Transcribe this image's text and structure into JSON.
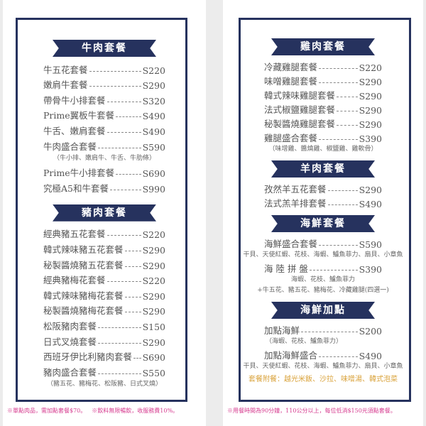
{
  "left": {
    "sections": [
      {
        "title": "牛肉套餐",
        "items": [
          {
            "name": "牛五花套餐",
            "price": "S220"
          },
          {
            "name": "嫩肩牛套餐",
            "price": "S290"
          },
          {
            "name": "帶骨牛小排套餐",
            "price": "S320"
          },
          {
            "name": "Prime翼板牛套餐",
            "price": "S490"
          },
          {
            "name": "牛舌、嫩肩套餐",
            "price": "S490"
          },
          {
            "name": "牛肉盛合套餐",
            "price": "S590",
            "note": "（牛小排、嫩肩牛、牛舌、牛肋條）"
          },
          {
            "name": "Prime牛小排套餐",
            "price": "S690"
          },
          {
            "name": "究極A5和牛套餐",
            "price": "S990"
          }
        ]
      },
      {
        "title": "豬肉套餐",
        "items": [
          {
            "name": "經典豬五花套餐",
            "price": "S220"
          },
          {
            "name": "韓式辣味豬五花套餐",
            "price": "S290"
          },
          {
            "name": "秘製醬燒豬五花套餐",
            "price": "S290"
          },
          {
            "name": "經典豬梅花套餐",
            "price": "S220"
          },
          {
            "name": "韓式辣味豬梅花套餐",
            "price": "S290"
          },
          {
            "name": "秘製醬燒豬梅花套餐",
            "price": "S290"
          },
          {
            "name": "松阪豬肉套餐",
            "price": "S150"
          },
          {
            "name": "日式叉燒套餐",
            "price": "S290"
          },
          {
            "name": "西班牙伊比利豬肉套餐",
            "price": "S690"
          },
          {
            "name": "豬肉盛合套餐",
            "price": "S550",
            "note": "（豬五花、豬梅花、松阪豬、日式叉燒）"
          }
        ]
      }
    ],
    "footnotes": [
      "※單點肉品，需加點套餐$70。",
      "※飲料無限暢飲，收服務費10%。"
    ]
  },
  "right": {
    "sections": [
      {
        "title": "雞肉套餐",
        "items": [
          {
            "name": "冷藏雞腿套餐",
            "price": "S220"
          },
          {
            "name": "味噌雞腿套餐",
            "price": "S290"
          },
          {
            "name": "韓式辣味雞腿套餐",
            "price": "S290"
          },
          {
            "name": "法式椒鹽雞腿套餐",
            "price": "S290"
          },
          {
            "name": "秘製醬燒雞腿套餐",
            "price": "S290"
          },
          {
            "name": "雞腿盛合套餐",
            "price": "S390",
            "note": "（味增雞、醬燒雞、椒鹽雞、雞軟骨）"
          }
        ]
      },
      {
        "title": "羊肉套餐",
        "items": [
          {
            "name": "孜然羊五花套餐",
            "price": "S290"
          },
          {
            "name": "法式羔羊排套餐",
            "price": "S490"
          }
        ]
      },
      {
        "title": "海鮮套餐",
        "items": [
          {
            "name": "海鮮盛合套餐",
            "price": "S590",
            "note": "干貝、天使紅蝦、花枝、海蝦、鱸魚菲力、扇貝、小章魚"
          },
          {
            "name": "海 陸 拼 盤",
            "price": "S390",
            "note": "海蝦、花枝、鱸魚菲力",
            "note2": "+牛五花、豬五花、豬梅花、冷藏雞腿(四選一)"
          }
        ]
      },
      {
        "title": "海鮮加點",
        "items": [
          {
            "name": "加點海鮮",
            "price": "S200",
            "note": "（海蝦、花枝、鱸魚菲力）",
            "note_align": "left"
          },
          {
            "name": "加點海鮮盛合",
            "price": "S490",
            "note": "干貝、天使紅蝦、花枝、海蝦、鱸魚菲力、扇貝、小章魚"
          }
        ]
      }
    ],
    "sides": "套餐附餐：越光米飯、沙拉、味噌湯、韓式泡菜",
    "footnotes": [
      "※用餐時間為90分鐘，110公分以上，每位低消$150元須點套餐。"
    ]
  },
  "colors": {
    "navy": "#26325e",
    "footnote": "#d63b8f",
    "sides": "#d9a23a"
  }
}
